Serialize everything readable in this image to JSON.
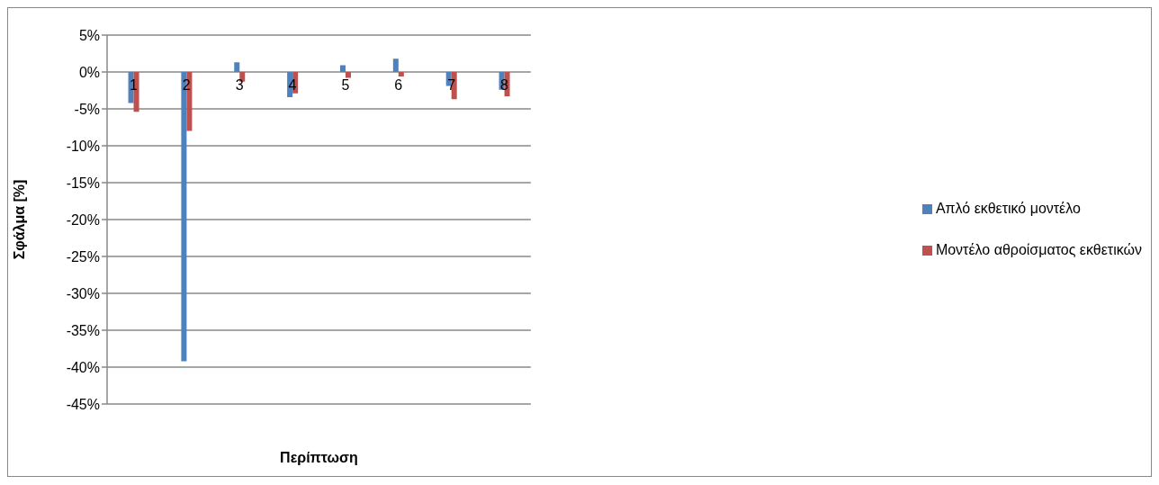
{
  "chart_data": {
    "type": "bar",
    "xlabel": "Περίπτωση",
    "ylabel": "Σφάλμα [%]",
    "categories": [
      "1",
      "2",
      "3",
      "4",
      "5",
      "6",
      "7",
      "8"
    ],
    "series": [
      {
        "name": "Απλό εκθετικό μοντέλο",
        "color": "#4f81bd",
        "values": [
          -4.2,
          -39.2,
          1.3,
          -3.4,
          0.9,
          1.8,
          -1.9,
          -2.4
        ]
      },
      {
        "name": "Μοντέλο αθροίσματος εκθετικών",
        "color": "#c0504d",
        "values": [
          -5.4,
          -8.0,
          -1.3,
          -2.9,
          -0.8,
          -0.6,
          -3.7,
          -3.3
        ]
      }
    ],
    "ylim": [
      -45,
      5
    ],
    "yticks": [
      {
        "value": 5,
        "label": "5%"
      },
      {
        "value": 0,
        "label": "0%"
      },
      {
        "value": -5,
        "label": "-5%"
      },
      {
        "value": -10,
        "label": "-10%"
      },
      {
        "value": -15,
        "label": "-15%"
      },
      {
        "value": -20,
        "label": "-20%"
      },
      {
        "value": -25,
        "label": "-25%"
      },
      {
        "value": -30,
        "label": "-30%"
      },
      {
        "value": -35,
        "label": "-35%"
      },
      {
        "value": -40,
        "label": "-40%"
      },
      {
        "value": -45,
        "label": "-45%"
      }
    ],
    "grid": "y",
    "legend": "right"
  }
}
